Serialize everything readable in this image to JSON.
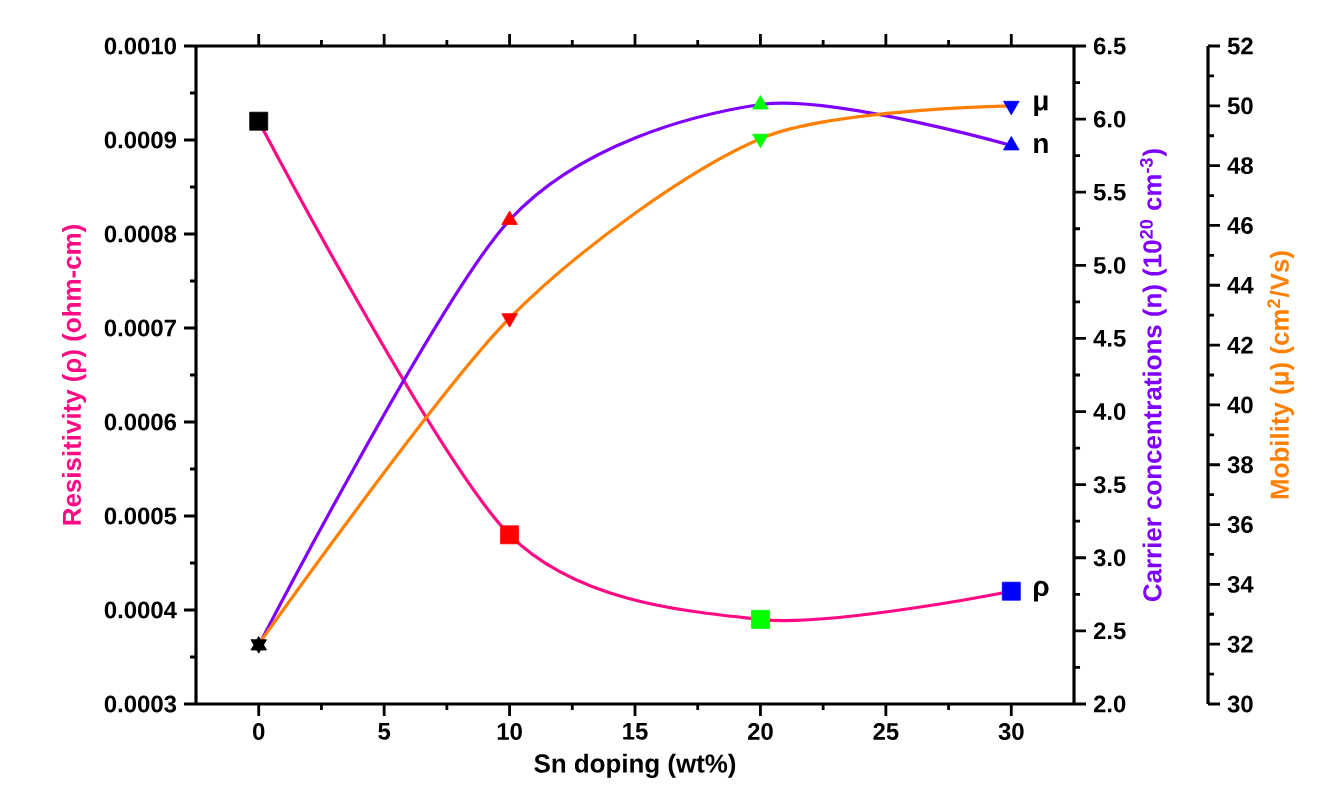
{
  "chart_data": {
    "type": "line",
    "xlabel": "Sn doping (wt%)",
    "ylabel": "Resisitivity (ρ) (ohm-cm)",
    "y2label": "Carrier concentrations (n) (10$^{20}$ cm$^{-3}$)",
    "y3label": "Mobility (μ) (cm$^{2}$/Vs)",
    "x": [
      0,
      10,
      20,
      30
    ],
    "xlim": [
      -2.5,
      32.5
    ],
    "xticks": [
      0,
      5,
      10,
      15,
      20,
      25,
      30
    ],
    "ylim": [
      0.0003,
      0.001
    ],
    "yticks": [
      0.0003,
      0.0004,
      0.0005,
      0.0006,
      0.0007,
      0.0008,
      0.0009,
      {
        "value": 0.001,
        "label": "0.0010"
      }
    ],
    "y2lim": [
      2,
      6.5
    ],
    "y2ticks": [
      {
        "value": 2,
        "label": "2.0"
      },
      2.5,
      {
        "value": 3,
        "label": "3.0"
      },
      3.5,
      {
        "value": 4,
        "label": "4.0"
      },
      4.5,
      {
        "value": 5,
        "label": "5.0"
      },
      5.5,
      {
        "value": 6,
        "label": "6.0"
      },
      6.5
    ],
    "y3lim": [
      30,
      52
    ],
    "y3ticks": [
      30,
      32,
      34,
      36,
      38,
      40,
      42,
      44,
      46,
      48,
      50,
      52
    ],
    "series": [
      {
        "name": "ρ",
        "color": "#ff0a84",
        "colors": [
          "#000000",
          "#ff0000",
          "#00ff00",
          "#0000ff"
        ],
        "marker": "square",
        "values": [
          0.00092,
          0.00048,
          0.00039,
          0.00042
        ]
      },
      {
        "name": "n",
        "color": "#8000ff",
        "colors": [
          "#000000",
          "#ff0000",
          "#00ff00",
          "#0000ff"
        ],
        "marker": "triangle",
        "axis": "y2",
        "values": [
          2.4,
          5.31,
          6.1,
          5.82
        ]
      },
      {
        "name": "μ",
        "color": "#ff8000",
        "colors": [
          "#000000",
          "#ff0000",
          "#00ff00",
          "#0000ff"
        ],
        "marker": "triangle down",
        "axis": "y3",
        "values": [
          32.0,
          42.9,
          48.9,
          50.0
        ]
      }
    ]
  }
}
